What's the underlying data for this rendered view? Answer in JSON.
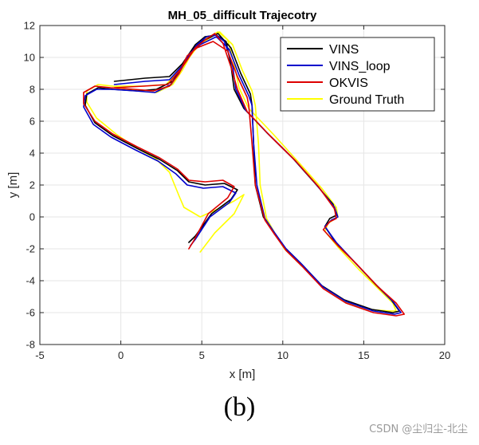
{
  "chart_data": {
    "type": "line",
    "title": "MH_05_difficult Trajecotry",
    "xlabel": "x [m]",
    "ylabel": "y [m]",
    "xlim": [
      -5,
      20
    ],
    "ylim": [
      -8,
      12
    ],
    "xticks": [
      -5,
      0,
      5,
      10,
      15,
      20
    ],
    "yticks": [
      -8,
      -6,
      -4,
      -2,
      0,
      2,
      4,
      6,
      8,
      10,
      12
    ],
    "grid": true,
    "legend_position": "top-right",
    "series": [
      {
        "name": "VINS",
        "color": "#000000",
        "points": [
          [
            -0.4,
            8.5
          ],
          [
            1.5,
            8.7
          ],
          [
            3.0,
            8.8
          ],
          [
            3.8,
            9.6
          ],
          [
            4.6,
            10.8
          ],
          [
            5.2,
            11.3
          ],
          [
            5.9,
            11.4
          ],
          [
            6.5,
            11.0
          ],
          [
            6.8,
            9.5
          ],
          [
            7.0,
            8.0
          ],
          [
            7.6,
            6.8
          ],
          [
            9.0,
            5.3
          ],
          [
            10.6,
            3.7
          ],
          [
            12.0,
            2.1
          ],
          [
            13.1,
            0.8
          ],
          [
            13.3,
            0.1
          ],
          [
            12.9,
            -0.1
          ],
          [
            12.6,
            -0.6
          ],
          [
            13.2,
            -1.5
          ],
          [
            14.4,
            -2.8
          ],
          [
            15.7,
            -4.2
          ],
          [
            16.7,
            -5.2
          ],
          [
            17.2,
            -5.9
          ],
          [
            16.8,
            -6.0
          ],
          [
            15.5,
            -5.8
          ],
          [
            13.8,
            -5.2
          ],
          [
            12.4,
            -4.3
          ],
          [
            11.1,
            -2.9
          ],
          [
            10.1,
            -1.9
          ],
          [
            9.4,
            -0.9
          ],
          [
            8.8,
            0.0
          ],
          [
            8.3,
            2.0
          ],
          [
            8.2,
            4.6
          ],
          [
            8.1,
            7.0
          ],
          [
            8.0,
            7.7
          ],
          [
            7.4,
            9.0
          ],
          [
            6.8,
            10.6
          ],
          [
            6.0,
            11.5
          ],
          [
            5.0,
            11.0
          ],
          [
            4.4,
            10.5
          ],
          [
            3.8,
            9.4
          ],
          [
            3.2,
            8.5
          ],
          [
            2.2,
            8.0
          ],
          [
            1.0,
            7.9
          ],
          [
            -0.5,
            8.0
          ],
          [
            -1.4,
            8.1
          ],
          [
            -2.1,
            7.7
          ],
          [
            -2.2,
            7.0
          ],
          [
            -1.6,
            5.9
          ],
          [
            -0.5,
            5.1
          ],
          [
            1.0,
            4.3
          ],
          [
            2.4,
            3.6
          ],
          [
            3.5,
            2.9
          ],
          [
            4.2,
            2.2
          ],
          [
            5.2,
            2.0
          ],
          [
            6.4,
            2.1
          ],
          [
            7.2,
            1.7
          ],
          [
            6.8,
            1.1
          ],
          [
            5.6,
            0.2
          ],
          [
            4.6,
            -1.2
          ],
          [
            4.2,
            -1.6
          ]
        ]
      },
      {
        "name": "VINS_loop",
        "color": "#0000cc",
        "points": [
          [
            -0.4,
            8.3
          ],
          [
            1.5,
            8.5
          ],
          [
            3.0,
            8.6
          ],
          [
            3.9,
            9.6
          ],
          [
            4.7,
            10.8
          ],
          [
            5.3,
            11.3
          ],
          [
            5.9,
            11.4
          ],
          [
            6.4,
            11.0
          ],
          [
            6.9,
            9.5
          ],
          [
            7.1,
            8.0
          ],
          [
            7.7,
            6.7
          ],
          [
            9.1,
            5.2
          ],
          [
            10.7,
            3.6
          ],
          [
            12.1,
            2.0
          ],
          [
            13.2,
            0.6
          ],
          [
            13.4,
            0.0
          ],
          [
            13.0,
            -0.2
          ],
          [
            12.6,
            -0.6
          ],
          [
            13.3,
            -1.6
          ],
          [
            14.5,
            -2.9
          ],
          [
            15.8,
            -4.3
          ],
          [
            16.8,
            -5.3
          ],
          [
            17.3,
            -6.0
          ],
          [
            16.9,
            -6.1
          ],
          [
            15.6,
            -5.9
          ],
          [
            13.9,
            -5.3
          ],
          [
            12.5,
            -4.4
          ],
          [
            11.2,
            -3.0
          ],
          [
            10.2,
            -2.0
          ],
          [
            9.5,
            -1.0
          ],
          [
            8.9,
            -0.1
          ],
          [
            8.4,
            2.0
          ],
          [
            8.2,
            4.6
          ],
          [
            8.1,
            7.0
          ],
          [
            7.9,
            7.6
          ],
          [
            7.3,
            8.9
          ],
          [
            6.7,
            10.5
          ],
          [
            5.9,
            11.3
          ],
          [
            4.9,
            10.8
          ],
          [
            4.3,
            10.3
          ],
          [
            3.7,
            9.2
          ],
          [
            3.1,
            8.3
          ],
          [
            2.1,
            7.8
          ],
          [
            0.9,
            7.9
          ],
          [
            -0.6,
            8.0
          ],
          [
            -1.5,
            8.0
          ],
          [
            -2.2,
            7.6
          ],
          [
            -2.3,
            6.9
          ],
          [
            -1.7,
            5.8
          ],
          [
            -0.6,
            5.0
          ],
          [
            0.9,
            4.2
          ],
          [
            2.3,
            3.5
          ],
          [
            3.4,
            2.7
          ],
          [
            4.1,
            2.0
          ],
          [
            5.1,
            1.8
          ],
          [
            6.3,
            1.9
          ],
          [
            7.1,
            1.5
          ],
          [
            6.7,
            0.9
          ],
          [
            5.5,
            0.0
          ],
          [
            4.6,
            -1.4
          ],
          [
            4.3,
            -1.8
          ]
        ]
      },
      {
        "name": "OKVIS",
        "color": "#dd0000",
        "points": [
          [
            -0.4,
            8.1
          ],
          [
            1.4,
            8.2
          ],
          [
            2.9,
            8.3
          ],
          [
            3.8,
            9.4
          ],
          [
            4.6,
            10.6
          ],
          [
            5.2,
            11.1
          ],
          [
            5.8,
            11.5
          ],
          [
            6.3,
            10.9
          ],
          [
            6.8,
            9.4
          ],
          [
            7.2,
            8.0
          ],
          [
            7.8,
            6.6
          ],
          [
            9.2,
            5.1
          ],
          [
            10.8,
            3.5
          ],
          [
            12.2,
            1.9
          ],
          [
            13.2,
            0.5
          ],
          [
            13.3,
            -0.1
          ],
          [
            12.9,
            -0.3
          ],
          [
            12.5,
            -0.8
          ],
          [
            13.4,
            -1.8
          ],
          [
            14.6,
            -3.0
          ],
          [
            15.9,
            -4.4
          ],
          [
            17.0,
            -5.4
          ],
          [
            17.5,
            -6.1
          ],
          [
            17.0,
            -6.2
          ],
          [
            15.6,
            -6.0
          ],
          [
            13.9,
            -5.4
          ],
          [
            12.5,
            -4.5
          ],
          [
            11.2,
            -3.1
          ],
          [
            10.2,
            -2.1
          ],
          [
            9.5,
            -1.1
          ],
          [
            8.9,
            -0.2
          ],
          [
            8.3,
            2.0
          ],
          [
            8.1,
            4.6
          ],
          [
            7.9,
            7.0
          ],
          [
            7.8,
            7.5
          ],
          [
            7.2,
            8.8
          ],
          [
            6.6,
            10.4
          ],
          [
            5.7,
            11.0
          ],
          [
            4.7,
            10.6
          ],
          [
            4.1,
            10.1
          ],
          [
            3.6,
            9.0
          ],
          [
            3.0,
            8.2
          ],
          [
            2.0,
            7.9
          ],
          [
            0.8,
            8.0
          ],
          [
            -0.6,
            8.1
          ],
          [
            -1.6,
            8.2
          ],
          [
            -2.3,
            7.8
          ],
          [
            -2.3,
            7.1
          ],
          [
            -1.6,
            6.0
          ],
          [
            -0.5,
            5.2
          ],
          [
            1.0,
            4.4
          ],
          [
            2.4,
            3.7
          ],
          [
            3.5,
            3.0
          ],
          [
            4.2,
            2.3
          ],
          [
            5.2,
            2.2
          ],
          [
            6.3,
            2.3
          ],
          [
            7.0,
            1.9
          ],
          [
            6.6,
            1.2
          ],
          [
            5.4,
            0.2
          ],
          [
            4.5,
            -1.5
          ],
          [
            4.2,
            -2.0
          ]
        ]
      },
      {
        "name": "Ground Truth",
        "color": "#ffff00",
        "points": [
          [
            -0.3,
            8.2
          ],
          [
            1.4,
            8.2
          ],
          [
            2.8,
            8.3
          ],
          [
            3.7,
            9.3
          ],
          [
            4.6,
            10.5
          ],
          [
            5.3,
            11.2
          ],
          [
            6.0,
            11.6
          ],
          [
            6.6,
            11.1
          ],
          [
            7.0,
            9.6
          ],
          [
            7.3,
            8.1
          ],
          [
            7.9,
            6.8
          ],
          [
            9.4,
            5.2
          ],
          [
            11.0,
            3.4
          ],
          [
            12.4,
            1.8
          ],
          [
            13.3,
            0.6
          ],
          [
            13.4,
            0.0
          ],
          [
            12.8,
            -0.4
          ],
          [
            12.6,
            -0.9
          ],
          [
            13.5,
            -2.0
          ],
          [
            14.7,
            -3.3
          ],
          [
            15.9,
            -4.5
          ],
          [
            16.8,
            -5.4
          ],
          [
            17.0,
            -5.9
          ],
          [
            16.6,
            -5.9
          ],
          [
            15.3,
            -5.8
          ],
          [
            13.8,
            -5.3
          ],
          [
            12.5,
            -4.4
          ],
          [
            11.1,
            -3.0
          ],
          [
            10.1,
            -2.0
          ],
          [
            9.5,
            -1.0
          ],
          [
            9.0,
            -0.1
          ],
          [
            8.6,
            2.0
          ],
          [
            8.5,
            4.6
          ],
          [
            8.3,
            7.0
          ],
          [
            8.1,
            7.9
          ],
          [
            7.5,
            9.2
          ],
          [
            6.9,
            10.8
          ],
          [
            6.1,
            11.6
          ],
          [
            5.0,
            10.9
          ],
          [
            4.4,
            10.3
          ],
          [
            3.8,
            9.2
          ],
          [
            3.2,
            8.3
          ],
          [
            2.2,
            7.8
          ],
          [
            1.0,
            7.9
          ],
          [
            -0.5,
            8.2
          ],
          [
            -1.4,
            8.3
          ],
          [
            -2.1,
            7.9
          ],
          [
            -2.1,
            7.2
          ],
          [
            -1.5,
            6.2
          ],
          [
            -0.3,
            5.2
          ],
          [
            1.0,
            4.3
          ],
          [
            2.1,
            3.7
          ],
          [
            3.0,
            2.8
          ],
          [
            3.6,
            1.3
          ],
          [
            3.9,
            0.6
          ],
          [
            4.4,
            0.3
          ],
          [
            4.9,
            0.0
          ],
          [
            6.0,
            0.5
          ],
          [
            7.0,
            1.0
          ],
          [
            7.6,
            1.4
          ],
          [
            7.0,
            0.2
          ],
          [
            5.8,
            -1.0
          ],
          [
            4.9,
            -2.2
          ]
        ]
      }
    ]
  },
  "caption": "(b)",
  "watermark": "CSDN @尘归尘-北尘"
}
